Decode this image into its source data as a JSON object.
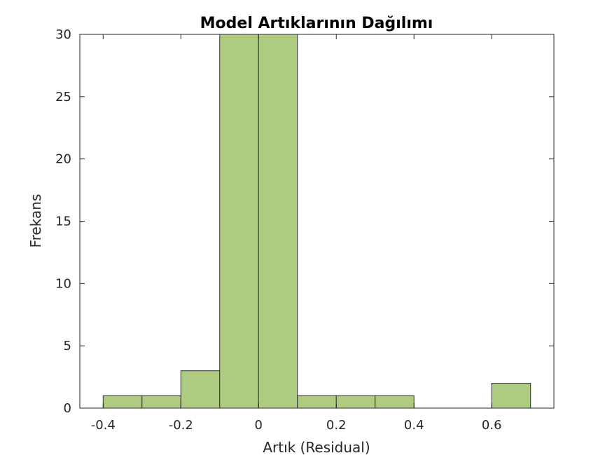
{
  "chart_data": {
    "type": "bar",
    "histogram": true,
    "title": "Model Artıklarının Dağılımı",
    "xlabel": "Artık (Residual)",
    "ylabel": "Frekans",
    "xlim": [
      -0.46,
      0.76
    ],
    "ylim": [
      0,
      30
    ],
    "x_ticks": [
      -0.4,
      -0.2,
      0,
      0.2,
      0.4,
      0.6
    ],
    "x_tick_labels": [
      "-0.4",
      "-0.2",
      "0",
      "0.2",
      "0.4",
      "0.6"
    ],
    "y_ticks": [
      0,
      5,
      10,
      15,
      20,
      25,
      30
    ],
    "y_tick_labels": [
      "0",
      "5",
      "10",
      "15",
      "20",
      "25",
      "30"
    ],
    "bin_edges": [
      -0.4,
      -0.3,
      -0.2,
      -0.1,
      0.0,
      0.1,
      0.2,
      0.3,
      0.4,
      0.5,
      0.6,
      0.7
    ],
    "values": [
      1,
      1,
      3,
      30,
      30,
      1,
      1,
      1,
      0,
      0,
      2
    ],
    "bar_color": "#adcc82",
    "grid": false
  }
}
